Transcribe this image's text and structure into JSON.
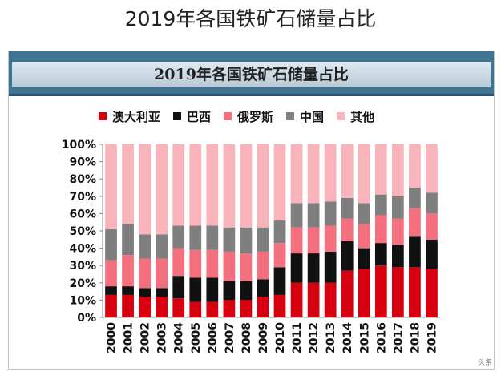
{
  "page_title": "2019年各国铁矿石储量占比",
  "chart_data": {
    "type": "bar",
    "stacked": true,
    "title": "2019年各国铁矿石储量占比",
    "xlabel": "",
    "ylabel": "",
    "ylim": [
      0,
      100
    ],
    "y_tick_labels": [
      "0%",
      "10%",
      "20%",
      "30%",
      "40%",
      "50%",
      "60%",
      "70%",
      "80%",
      "90%",
      "100%"
    ],
    "grid": false,
    "legend_position": "top",
    "categories": [
      "2000",
      "2001",
      "2002",
      "2003",
      "2004",
      "2005",
      "2006",
      "2007",
      "2008",
      "2009",
      "2010",
      "2011",
      "2012",
      "2013",
      "2014",
      "2015",
      "2016",
      "2017",
      "2018",
      "2019"
    ],
    "series": [
      {
        "name": "澳大利亚",
        "color": "#d7000f",
        "values": [
          13,
          13,
          12,
          12,
          11,
          9,
          9,
          10,
          10,
          12,
          13,
          20,
          20,
          20,
          27,
          28,
          30,
          29,
          29,
          28
        ]
      },
      {
        "name": "巴西",
        "color": "#111111",
        "values": [
          5,
          5,
          5,
          5,
          13,
          14,
          14,
          11,
          11,
          10,
          16,
          17,
          17,
          18,
          17,
          12,
          13,
          13,
          18,
          17
        ]
      },
      {
        "name": "俄罗斯",
        "color": "#f5707e",
        "values": [
          15,
          18,
          17,
          17,
          16,
          16,
          16,
          17,
          16,
          16,
          14,
          15,
          15,
          15,
          13,
          14,
          16,
          15,
          16,
          15
        ]
      },
      {
        "name": "中国",
        "color": "#7f7f7f",
        "values": [
          18,
          18,
          14,
          14,
          13,
          14,
          14,
          14,
          15,
          14,
          13,
          14,
          14,
          14,
          12,
          12,
          12,
          13,
          12,
          12
        ]
      },
      {
        "name": "其他",
        "color": "#f9b3bb",
        "values": [
          49,
          46,
          52,
          52,
          47,
          47,
          47,
          48,
          48,
          48,
          44,
          34,
          34,
          33,
          31,
          34,
          29,
          30,
          25,
          28
        ]
      }
    ]
  },
  "watermark": "头条"
}
